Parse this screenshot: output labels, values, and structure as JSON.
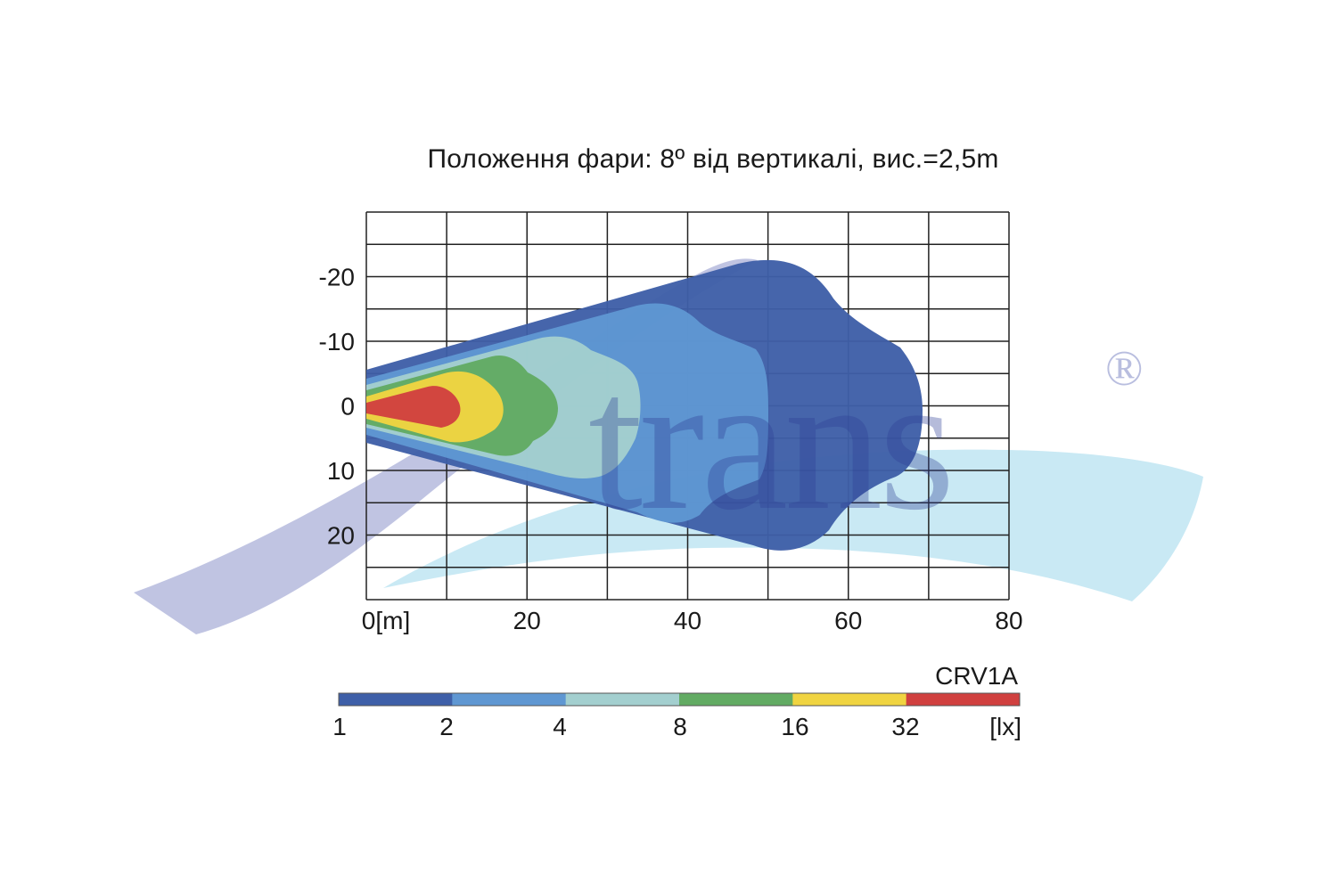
{
  "chart_data": {
    "type": "heatmap",
    "title": "Положення фари: 8º від вертикалі, вис.=2,5m",
    "xlabel": "",
    "ylabel": "",
    "x_ticks": [
      "0[m]",
      "20",
      "40",
      "60",
      "80"
    ],
    "y_ticks": [
      "-20",
      "-10",
      "0",
      "10",
      "20"
    ],
    "x_range": [
      0,
      80
    ],
    "y_range": [
      -30,
      30
    ],
    "grid": true,
    "model": "CRV1A",
    "legend": {
      "unit": "[lx]",
      "thresholds": [
        "1",
        "2",
        "4",
        "8",
        "16",
        "32"
      ],
      "colors": [
        "#3e5fa8",
        "#5f97d2",
        "#a3cfcf",
        "#62ab63",
        "#f0d441",
        "#d0403f"
      ]
    },
    "isolux_zones": [
      {
        "lux": 1,
        "max_distance_m": 69,
        "max_half_width_m": 23
      },
      {
        "lux": 2,
        "max_distance_m": 47,
        "max_half_width_m": 16
      },
      {
        "lux": 4,
        "max_distance_m": 34,
        "max_half_width_m": 11
      },
      {
        "lux": 8,
        "max_distance_m": 25,
        "max_half_width_m": 7
      },
      {
        "lux": 16,
        "max_distance_m": 18,
        "max_half_width_m": 5
      },
      {
        "lux": 32,
        "max_distance_m": 12,
        "max_half_width_m": 4
      }
    ]
  },
  "watermark": {
    "text": "trans",
    "mark": "®",
    "swoosh_colors": [
      "#b9bedf",
      "#c6e8f3"
    ]
  }
}
